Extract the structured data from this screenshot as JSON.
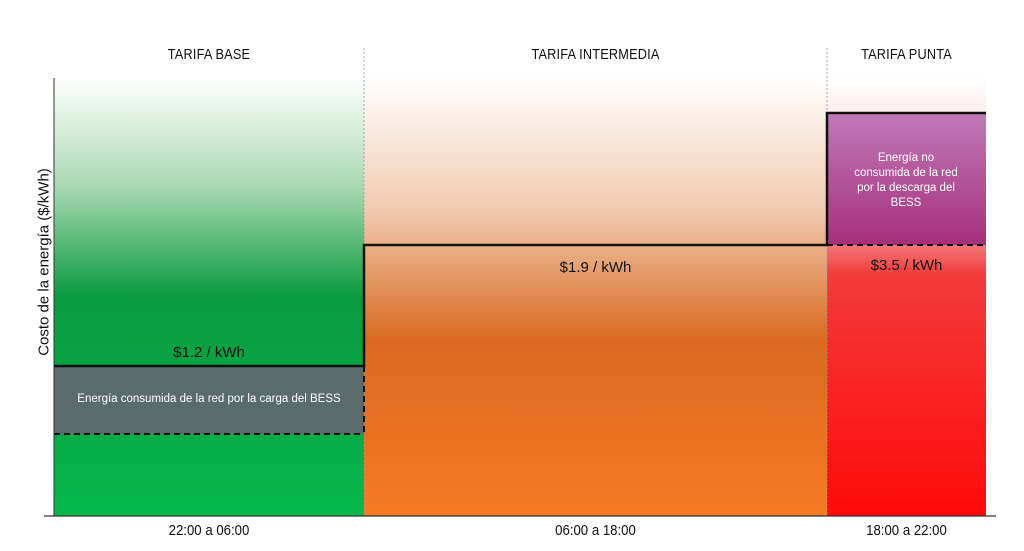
{
  "diagram": {
    "ylabel": "Costo de la energía ($/kWh)",
    "periods": [
      {
        "name": "TARIFA BASE",
        "time": "22:00 a 06:00",
        "price": "$1.2 / kWh",
        "color": "#0aa94a"
      },
      {
        "name": "TARIFA INTERMEDIA",
        "time": "06:00 a 18:00",
        "price": "$1.9 / kWh",
        "color": "#f07a25"
      },
      {
        "name": "TARIFA PUNTA",
        "time": "18:00 a 22:00",
        "price": "$3.5 / kWh",
        "color": "#ff1010"
      }
    ],
    "notes": {
      "charge": "Energía consumida de la red por la carga del BESS",
      "discharge": "Energía no consumida de la red por la descarga del BESS"
    },
    "colors": {
      "charge_box": "#5a6a6a",
      "discharge_box": "#a24a9a"
    }
  }
}
